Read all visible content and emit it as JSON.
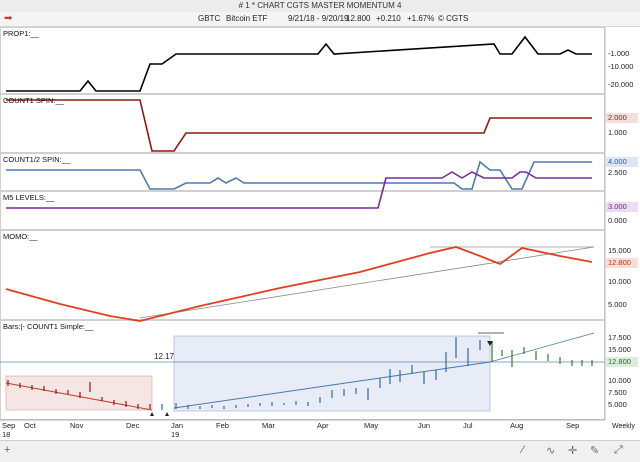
{
  "window": {
    "title": "# 1 * CHART CGTS MASTER MOMENTUM 4"
  },
  "header": {
    "symbol": "GBTC",
    "name": "Bitcoin ETF",
    "range": "9/21/18 - 9/20/19",
    "last": "12.800",
    "change": "+0.210",
    "pct": "+1.67%",
    "copyright": "© CGTS"
  },
  "panes": {
    "prop1": {
      "label": "PROP1:__",
      "ticks": [
        "-1.000",
        "-10.000",
        "-20.000"
      ]
    },
    "count1spin": {
      "label": "COUNT1 SPIN:__",
      "value": "2.000",
      "ticks": [
        "1.000"
      ]
    },
    "count12spin": {
      "label": "COUNT1/2 SPIN:__",
      "value": "4.000",
      "ticks": [
        "2.500"
      ]
    },
    "m5levels": {
      "label": "M5 LEVELS:__",
      "value": "3.000",
      "ticks": [
        "0.000"
      ]
    },
    "momo": {
      "label": "MOMO:__",
      "value": "12.800",
      "ticks": [
        "15.000",
        "10.000",
        "5.000"
      ]
    },
    "bars": {
      "label": "Bars:|-    COUNT1 Simple:__",
      "level": "12.17",
      "value": "12.800",
      "ticks": [
        "17.500",
        "15.000",
        "10.000",
        "7.500",
        "5.000"
      ]
    }
  },
  "xaxis": {
    "months": [
      "Sep",
      "Oct",
      "Nov",
      "Dec",
      "Jan",
      "Feb",
      "Mar",
      "Apr",
      "May",
      "Jun",
      "Jul",
      "Aug",
      "Sep"
    ],
    "years": [
      "18",
      "19"
    ],
    "period": "Weekly"
  },
  "colors": {
    "prop1": "#000000",
    "count1spin": "#8b1a10",
    "count12spin": "#4a7ab0",
    "m5levels": "#7b2a9a",
    "momo": "#e04020",
    "trend": "#7d95b0"
  }
}
